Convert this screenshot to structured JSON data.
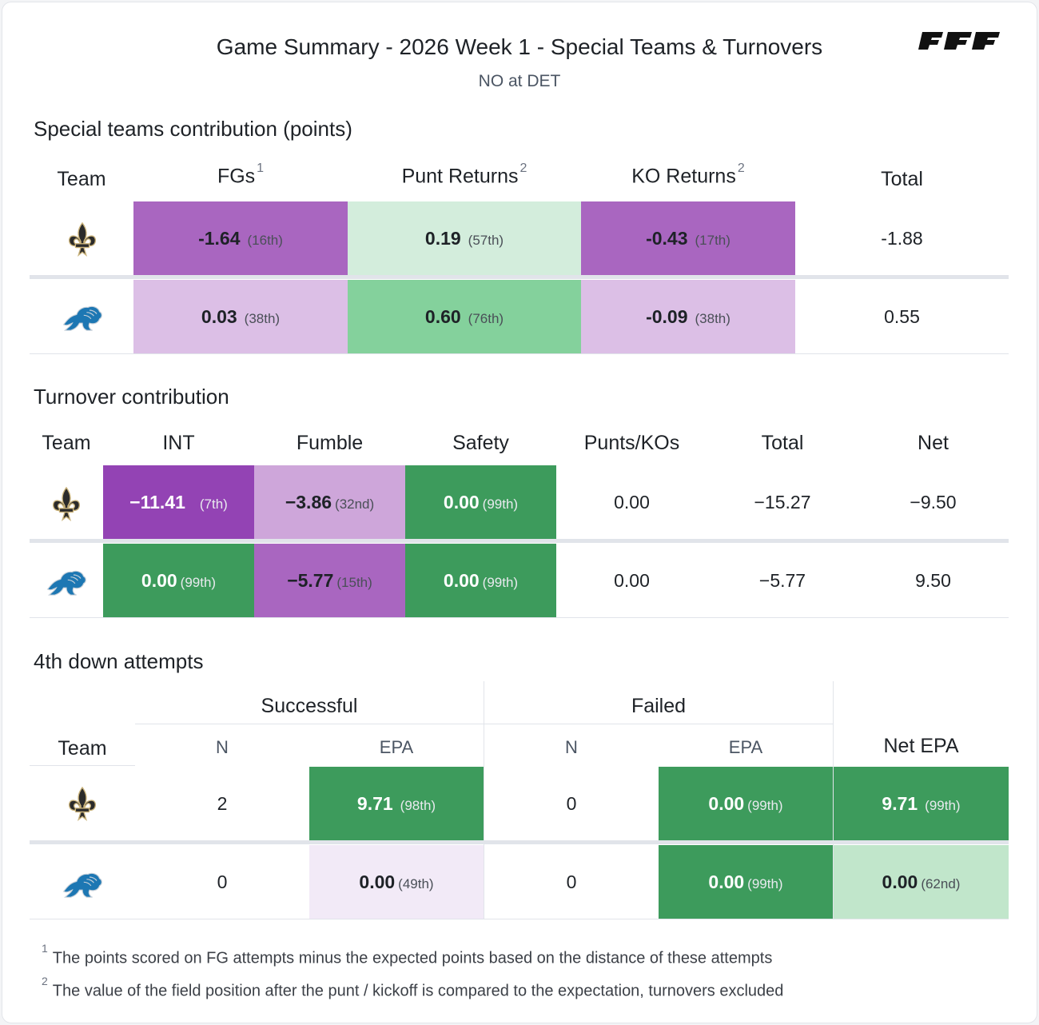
{
  "header": {
    "title": "Game Summary - 2026 Week 1 - Special Teams & Turnovers",
    "subtitle": "NO at DET",
    "brand_logo": "PFF"
  },
  "colors": {
    "purple_dark": "#9343b4",
    "purple_mid": "#a966c0",
    "purple_light": "#cea6da",
    "purple_pale": "#dcbfe6",
    "purple_faint": "#f2eaf7",
    "green_dark": "#3d9b5c",
    "green_mid": "#84d19c",
    "green_light": "#c1e6cb",
    "green_pale": "#d3eddc"
  },
  "special_teams": {
    "title": "Special teams contribution (points)",
    "headers": {
      "team": "Team",
      "fgs": "FGs",
      "fgs_note": "1",
      "punt": "Punt Returns",
      "punt_note": "2",
      "ko": "KO Returns",
      "ko_note": "2",
      "total": "Total"
    },
    "rows": [
      {
        "team_icon": "saints-fleur-de-lis-icon",
        "fg_value": "-1.64",
        "fg_rank": "(16th)",
        "punt_value": "0.19",
        "punt_rank": "(57th)",
        "ko_value": "-0.43",
        "ko_rank": "(17th)",
        "total": "-1.88"
      },
      {
        "team_icon": "lions-logo-icon",
        "fg_value": "0.03",
        "fg_rank": "(38th)",
        "punt_value": "0.60",
        "punt_rank": "(76th)",
        "ko_value": "-0.09",
        "ko_rank": "(38th)",
        "total": "0.55"
      }
    ]
  },
  "turnovers": {
    "title": "Turnover contribution",
    "headers": {
      "team": "Team",
      "int": "INT",
      "fumble": "Fumble",
      "safety": "Safety",
      "punts_kos": "Punts/KOs",
      "total": "Total",
      "net": "Net"
    },
    "rows": [
      {
        "team_icon": "saints-fleur-de-lis-icon",
        "int_value": "−11.41",
        "int_rank": "(7th)",
        "fumble_value": "−3.86",
        "fumble_rank": "(32nd)",
        "safety_value": "0.00",
        "safety_rank": "(99th)",
        "punts_kos": "0.00",
        "total": "−15.27",
        "net": "−9.50"
      },
      {
        "team_icon": "lions-logo-icon",
        "int_value": "0.00",
        "int_rank": "(99th)",
        "fumble_value": "−5.77",
        "fumble_rank": "(15th)",
        "safety_value": "0.00",
        "safety_rank": "(99th)",
        "punts_kos": "0.00",
        "total": "−5.77",
        "net": "9.50"
      }
    ]
  },
  "fourth_down": {
    "title": "4th down attempts",
    "headers": {
      "successful": "Successful",
      "failed": "Failed",
      "team": "Team",
      "n": "N",
      "epa": "EPA",
      "net_epa": "Net EPA"
    },
    "rows": [
      {
        "team_icon": "saints-fleur-de-lis-icon",
        "succ_n": "2",
        "succ_epa": "9.71",
        "succ_rank": "(98th)",
        "fail_n": "0",
        "fail_epa": "0.00",
        "fail_rank": "(99th)",
        "net_epa": "9.71",
        "net_rank": "(99th)"
      },
      {
        "team_icon": "lions-logo-icon",
        "succ_n": "0",
        "succ_epa": "0.00",
        "succ_rank": "(49th)",
        "fail_n": "0",
        "fail_epa": "0.00",
        "fail_rank": "(99th)",
        "net_epa": "0.00",
        "net_rank": "(62nd)"
      }
    ]
  },
  "footnotes": [
    {
      "mark": "1",
      "text": "The points scored on FG attempts minus the expected points based on the distance of these attempts"
    },
    {
      "mark": "2",
      "text": "The value of the field position after the punt / kickoff is compared to the expectation, turnovers excluded"
    }
  ]
}
